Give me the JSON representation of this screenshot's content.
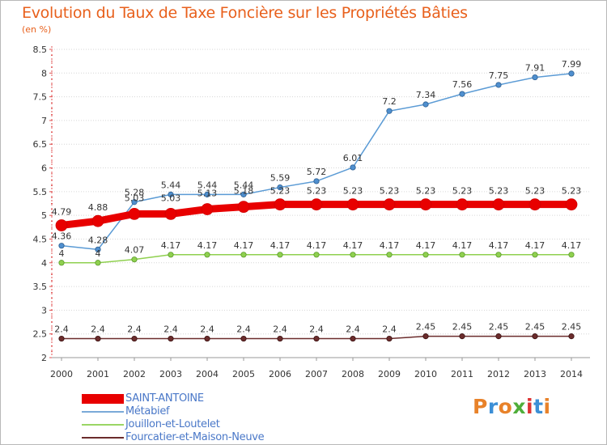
{
  "chart_data": {
    "type": "line",
    "title": "Evolution du Taux de Taxe Foncière sur les Propriétés Bâties",
    "subtitle": "(en %)",
    "x": [
      "2000",
      "2001",
      "2002",
      "2003",
      "2004",
      "2005",
      "2006",
      "2007",
      "2008",
      "2009",
      "2010",
      "2011",
      "2012",
      "2013",
      "2014"
    ],
    "ylim": [
      2,
      8.5
    ],
    "yticks": [
      "2",
      "2.5",
      "3",
      "3.5",
      "4",
      "4.5",
      "5",
      "5.5",
      "6",
      "6.5",
      "7",
      "7.5",
      "8",
      "8.5"
    ],
    "grid": "horizontal dotted",
    "legend_position": "bottom-left",
    "series": [
      {
        "name": "SAINT-ANTOINE",
        "color": "#e80000",
        "values": [
          4.79,
          4.88,
          5.03,
          5.03,
          5.13,
          5.18,
          5.23,
          5.23,
          5.23,
          5.23,
          5.23,
          5.23,
          5.23,
          5.23,
          5.23
        ],
        "labels": [
          "4.79",
          "4.88",
          "5.03",
          "5.03",
          "5.13",
          "5.18",
          "5.23",
          "5.23",
          "5.23",
          "5.23",
          "5.23",
          "5.23",
          "5.23",
          "5.23",
          "5.23"
        ]
      },
      {
        "name": "Métabief",
        "color": "#5b9bd5",
        "values": [
          4.36,
          4.28,
          5.28,
          5.44,
          5.44,
          5.44,
          5.59,
          5.72,
          6.01,
          7.2,
          7.34,
          7.56,
          7.75,
          7.91,
          7.99
        ],
        "labels": [
          "4.36",
          "4.28",
          "5.28",
          "5.44",
          "5.44",
          "5.44",
          "5.59",
          "5.72",
          "6.01",
          "7.2",
          "7.34",
          "7.56",
          "7.75",
          "7.91",
          "7.99"
        ]
      },
      {
        "name": "Jouillon-et-Loutelet",
        "color": "#8fd04f",
        "values": [
          4,
          4,
          4.07,
          4.17,
          4.17,
          4.17,
          4.17,
          4.17,
          4.17,
          4.17,
          4.17,
          4.17,
          4.17,
          4.17,
          4.17
        ],
        "labels": [
          "4",
          "4",
          "4.07",
          "4.17",
          "4.17",
          "4.17",
          "4.17",
          "4.17",
          "4.17",
          "4.17",
          "4.17",
          "4.17",
          "4.17",
          "4.17",
          "4.17"
        ]
      },
      {
        "name": "Fourcatier-et-Maison-Neuve",
        "color": "#6b2c2c",
        "values": [
          2.4,
          2.4,
          2.4,
          2.4,
          2.4,
          2.4,
          2.4,
          2.4,
          2.4,
          2.4,
          2.45,
          2.45,
          2.45,
          2.45,
          2.45
        ],
        "labels": [
          "2.4",
          "2.4",
          "2.4",
          "2.4",
          "2.4",
          "2.4",
          "2.4",
          "2.4",
          "2.4",
          "2.4",
          "2.45",
          "2.45",
          "2.45",
          "2.45",
          "2.45"
        ]
      }
    ]
  },
  "legend": {
    "items": [
      {
        "label": "SAINT-ANTOINE",
        "color": "#e80000",
        "text_color": "#4a78c8"
      },
      {
        "label": "Métabief",
        "color": "#7aaad8",
        "text_color": "#4a78c8"
      },
      {
        "label": "Jouillon-et-Loutelet",
        "color": "#9ad664",
        "text_color": "#4a78c8"
      },
      {
        "label": "Fourcatier-et-Maison-Neuve",
        "color": "#6b2c2c",
        "text_color": "#4a78c8"
      }
    ]
  },
  "logo": {
    "letters": [
      "P",
      "r",
      "o",
      "x",
      "i",
      "t",
      "i"
    ],
    "colors": [
      "#e8822a",
      "#3c8fd6",
      "#e8822a",
      "#4fae3a",
      "#d33",
      "#3c8fd6",
      "#e8822a"
    ]
  }
}
